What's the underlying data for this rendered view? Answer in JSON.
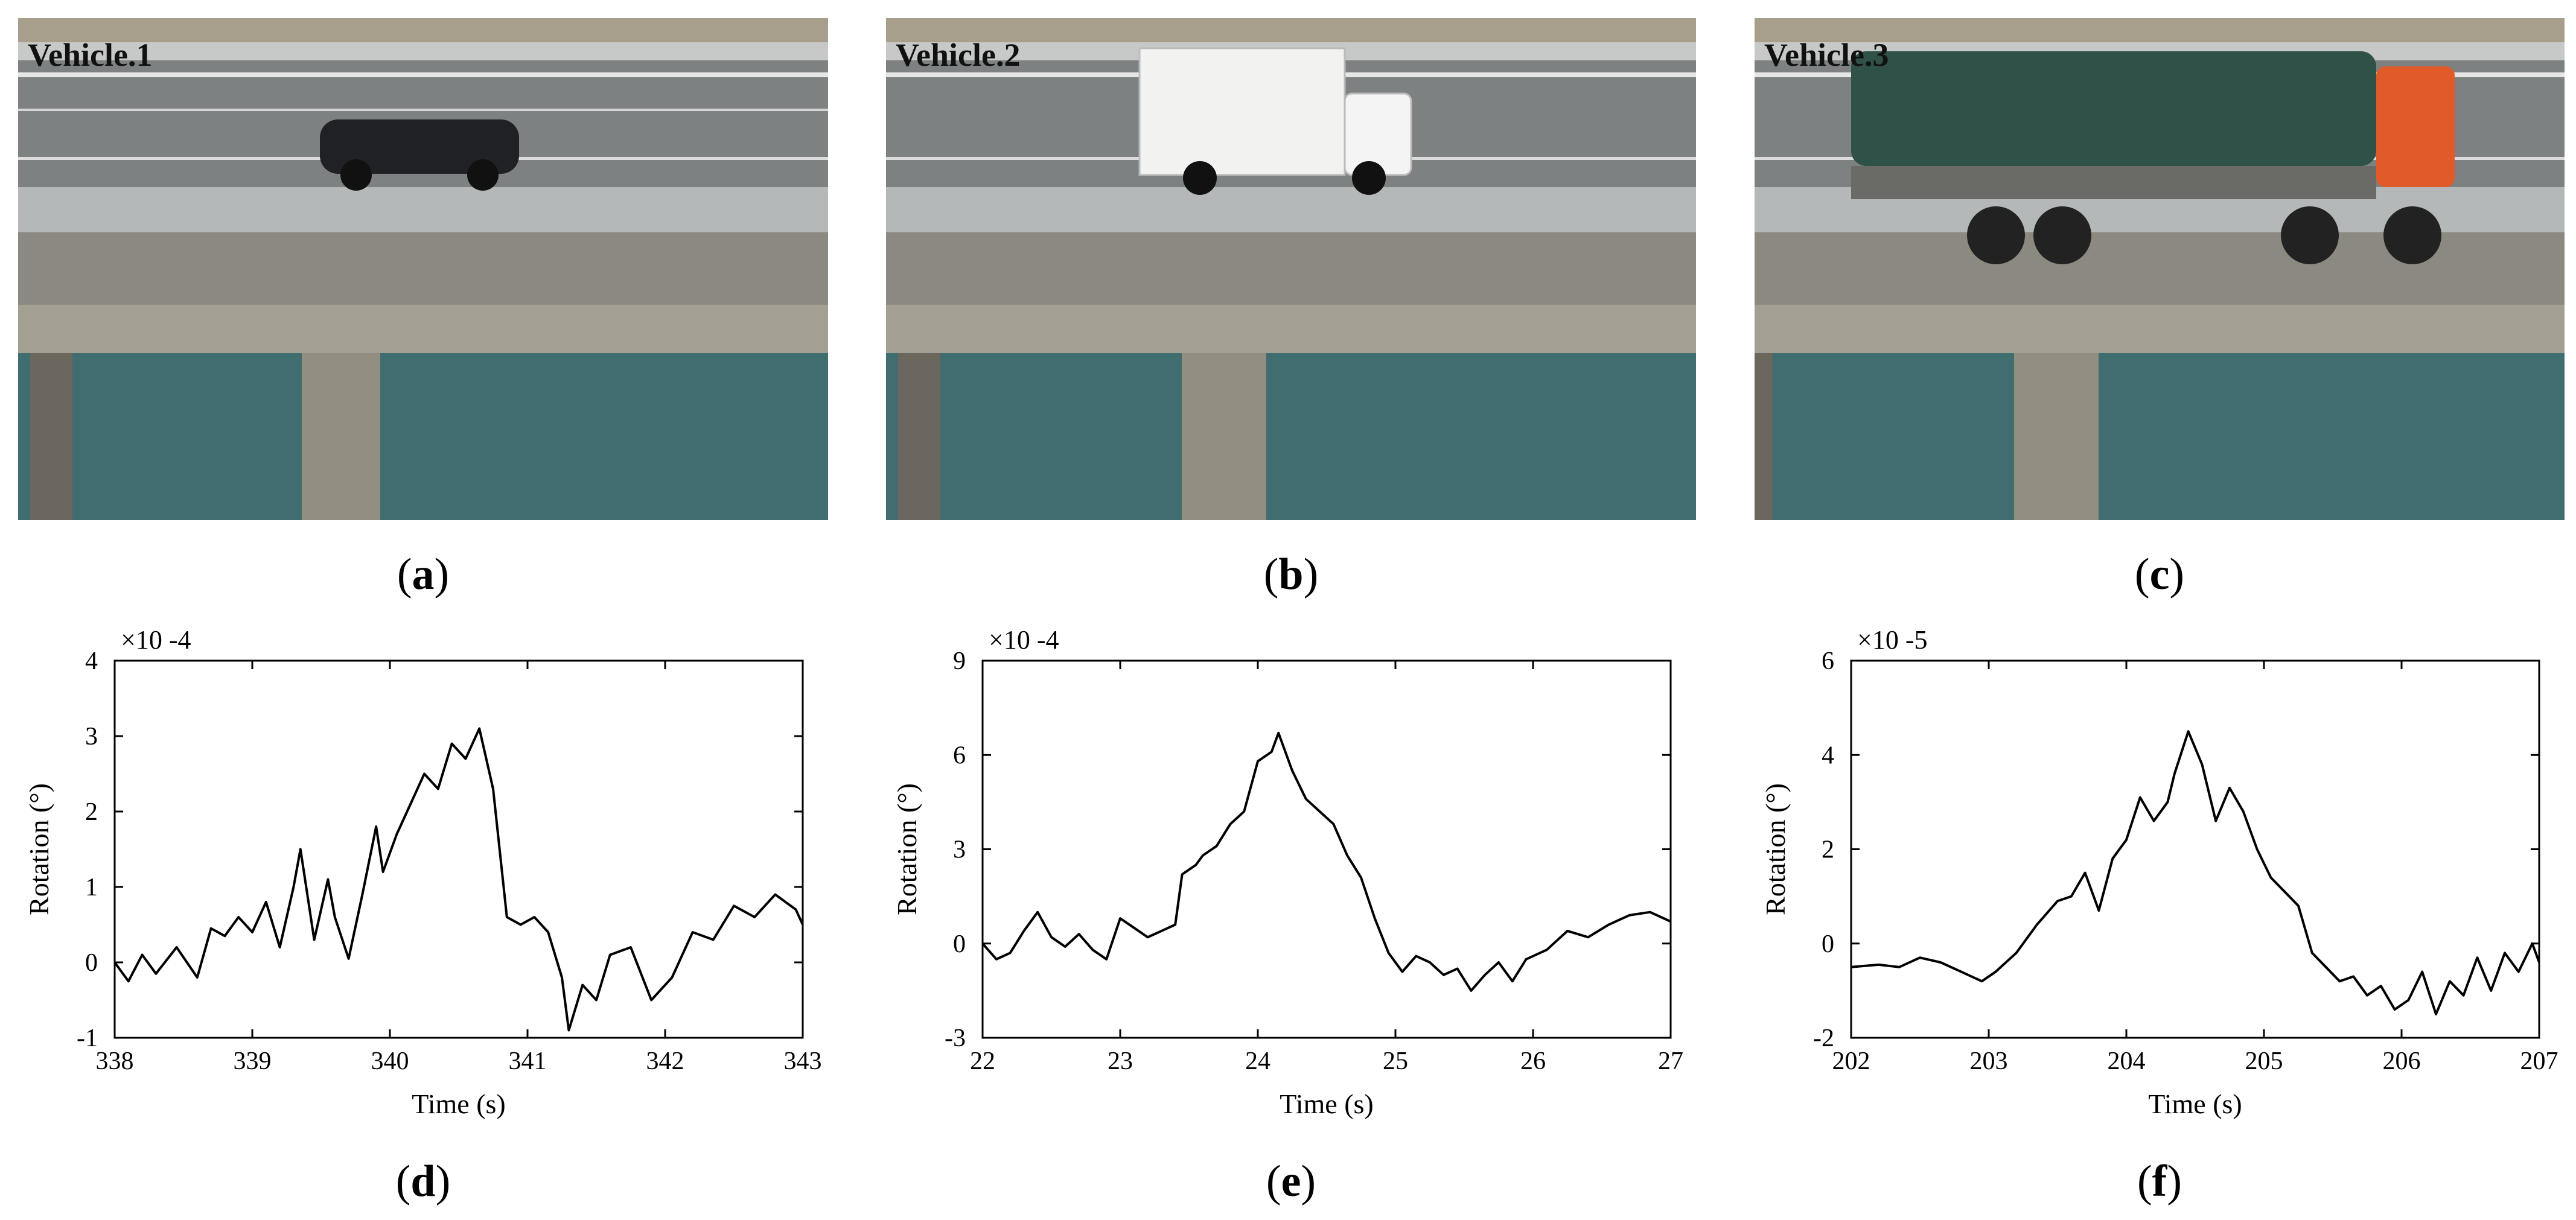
{
  "photos": [
    {
      "id": "a",
      "vehicle_label": "Vehicle.1",
      "caption": "a"
    },
    {
      "id": "b",
      "vehicle_label": "Vehicle.2",
      "caption": "b"
    },
    {
      "id": "c",
      "vehicle_label": "Vehicle.3",
      "caption": "c"
    }
  ],
  "colors": {
    "line": "#000000",
    "truck_cab": "#e05a2a",
    "tarp": "#2f5148",
    "car": "#1f2124"
  },
  "chart_data": [
    {
      "type": "line",
      "caption": "d",
      "xlabel": "Time (s)",
      "ylabel": "Rotation (°)",
      "scale_label": "×10 -4",
      "xlim": [
        338,
        343
      ],
      "ylim": [
        -1,
        4
      ],
      "xticks": [
        "338",
        "339",
        "340",
        "341",
        "342",
        "343"
      ],
      "yticks": [
        "-1",
        "0",
        "1",
        "2",
        "3",
        "4"
      ],
      "series": [
        {
          "x": [
            338,
            338.1,
            338.2,
            338.3,
            338.45,
            338.6,
            338.7,
            338.8,
            338.9,
            339,
            339.1,
            339.2,
            339.3,
            339.35,
            339.45,
            339.55,
            339.6,
            339.7,
            339.8,
            339.9,
            339.95,
            340.05,
            340.15,
            340.25,
            340.35,
            340.45,
            340.55,
            340.65,
            340.75,
            340.85,
            340.95,
            341.05,
            341.15,
            341.25,
            341.3,
            341.4,
            341.5,
            341.6,
            341.75,
            341.9,
            342.05,
            342.2,
            342.35,
            342.5,
            342.65,
            342.8,
            342.95,
            343
          ],
          "y": [
            0,
            -0.25,
            0.1,
            -0.15,
            0.2,
            -0.2,
            0.45,
            0.35,
            0.6,
            0.4,
            0.8,
            0.2,
            1.0,
            1.5,
            0.3,
            1.1,
            0.6,
            0.05,
            0.9,
            1.8,
            1.2,
            1.7,
            2.1,
            2.5,
            2.3,
            2.9,
            2.7,
            3.1,
            2.3,
            0.6,
            0.5,
            0.6,
            0.4,
            -0.2,
            -0.9,
            -0.3,
            -0.5,
            0.1,
            0.2,
            -0.5,
            -0.2,
            0.4,
            0.3,
            0.75,
            0.6,
            0.9,
            0.7,
            0.5
          ]
        }
      ]
    },
    {
      "type": "line",
      "caption": "e",
      "xlabel": "Time (s)",
      "ylabel": "Rotation (°)",
      "scale_label": "×10 -4",
      "xlim": [
        22,
        27
      ],
      "ylim": [
        -3,
        9
      ],
      "xticks": [
        "22",
        "23",
        "24",
        "25",
        "26",
        "27"
      ],
      "yticks": [
        "-3",
        "0",
        "3",
        "6",
        "9"
      ],
      "series": [
        {
          "x": [
            22,
            22.1,
            22.2,
            22.3,
            22.4,
            22.5,
            22.6,
            22.7,
            22.8,
            22.9,
            23,
            23.1,
            23.2,
            23.3,
            23.4,
            23.45,
            23.55,
            23.6,
            23.7,
            23.8,
            23.9,
            24,
            24.1,
            24.15,
            24.25,
            24.35,
            24.45,
            24.55,
            24.65,
            24.75,
            24.85,
            24.95,
            25.05,
            25.15,
            25.25,
            25.35,
            25.45,
            25.55,
            25.65,
            25.75,
            25.85,
            25.95,
            26.1,
            26.25,
            26.4,
            26.55,
            26.7,
            26.85,
            27
          ],
          "y": [
            0,
            -0.5,
            -0.3,
            0.4,
            1.0,
            0.2,
            -0.1,
            0.3,
            -0.2,
            -0.5,
            0.8,
            0.5,
            0.2,
            0.4,
            0.6,
            2.2,
            2.5,
            2.8,
            3.1,
            3.8,
            4.2,
            5.8,
            6.1,
            6.7,
            5.5,
            4.6,
            4.2,
            3.8,
            2.8,
            2.1,
            0.8,
            -0.3,
            -0.9,
            -0.4,
            -0.6,
            -1.0,
            -0.8,
            -1.5,
            -1.0,
            -0.6,
            -1.2,
            -0.5,
            -0.2,
            0.4,
            0.2,
            0.6,
            0.9,
            1.0,
            0.7
          ]
        }
      ]
    },
    {
      "type": "line",
      "caption": "f",
      "xlabel": "Time (s)",
      "ylabel": "Rotation (°)",
      "scale_label": "×10 -5",
      "xlim": [
        202,
        207
      ],
      "ylim": [
        -2,
        6
      ],
      "xticks": [
        "202",
        "203",
        "204",
        "205",
        "206",
        "207"
      ],
      "yticks": [
        "-2",
        "0",
        "2",
        "4",
        "6"
      ],
      "series": [
        {
          "x": [
            202,
            202.2,
            202.35,
            202.5,
            202.65,
            202.8,
            202.95,
            203.05,
            203.2,
            203.35,
            203.5,
            203.6,
            203.7,
            203.8,
            203.9,
            204,
            204.1,
            204.2,
            204.3,
            204.35,
            204.45,
            204.55,
            204.65,
            204.75,
            204.85,
            204.95,
            205.05,
            205.15,
            205.25,
            205.35,
            205.45,
            205.55,
            205.65,
            205.75,
            205.85,
            205.95,
            206.05,
            206.15,
            206.25,
            206.35,
            206.45,
            206.55,
            206.65,
            206.75,
            206.85,
            206.95,
            207
          ],
          "y": [
            -0.5,
            -0.45,
            -0.5,
            -0.3,
            -0.4,
            -0.6,
            -0.8,
            -0.6,
            -0.2,
            0.4,
            0.9,
            1.0,
            1.5,
            0.7,
            1.8,
            2.2,
            3.1,
            2.6,
            3.0,
            3.6,
            4.5,
            3.8,
            2.6,
            3.3,
            2.8,
            2.0,
            1.4,
            1.1,
            0.8,
            -0.2,
            -0.5,
            -0.8,
            -0.7,
            -1.1,
            -0.9,
            -1.4,
            -1.2,
            -0.6,
            -1.5,
            -0.8,
            -1.1,
            -0.3,
            -1.0,
            -0.2,
            -0.6,
            0.0,
            -0.4
          ]
        }
      ]
    }
  ]
}
